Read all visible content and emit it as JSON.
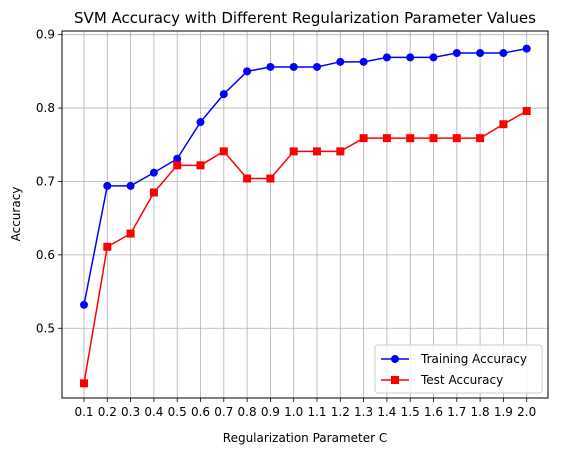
{
  "chart_data": {
    "type": "line",
    "title": "SVM Accuracy with Different Regularization Parameter Values",
    "xlabel": "Regularization Parameter C",
    "ylabel": "Accuracy",
    "x": [
      "0.1",
      "0.2",
      "0.3",
      "0.4",
      "0.5",
      "0.6",
      "0.7",
      "0.8",
      "0.9",
      "1.0",
      "1.1",
      "1.2",
      "1.3",
      "1.4",
      "1.5",
      "1.6",
      "1.7",
      "1.8",
      "1.9",
      "2.0"
    ],
    "yticks": [
      "0.5",
      "0.6",
      "0.7",
      "0.8",
      "0.9"
    ],
    "ylim": [
      0.405,
      0.905
    ],
    "grid": true,
    "legend_position": "lower-right",
    "series": [
      {
        "name": "Training Accuracy",
        "color": "#0000ff",
        "marker": "circle",
        "values": [
          0.532,
          0.694,
          0.694,
          0.712,
          0.731,
          0.781,
          0.819,
          0.85,
          0.856,
          0.856,
          0.856,
          0.863,
          0.863,
          0.869,
          0.869,
          0.869,
          0.875,
          0.875,
          0.875,
          0.881
        ]
      },
      {
        "name": "Test Accuracy",
        "color": "#ff0000",
        "marker": "square",
        "values": [
          0.425,
          0.611,
          0.629,
          0.685,
          0.722,
          0.722,
          0.741,
          0.704,
          0.704,
          0.741,
          0.741,
          0.741,
          0.759,
          0.759,
          0.759,
          0.759,
          0.759,
          0.759,
          0.778,
          0.796
        ]
      }
    ]
  }
}
